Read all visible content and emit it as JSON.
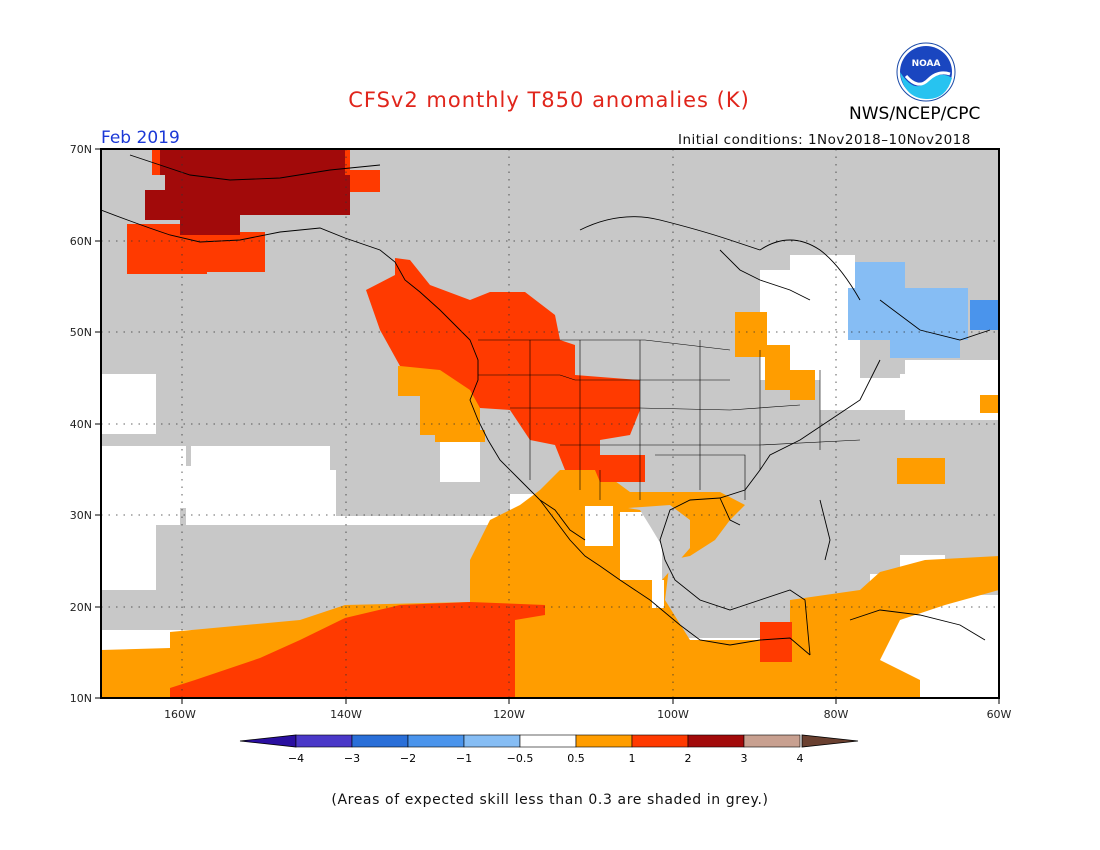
{
  "header": {
    "title": "CFSv2 monthly T850 anomalies (K)",
    "agency": "NWS/NCEP/CPC",
    "logo_text": "NOAA",
    "month": "Feb 2019",
    "initial_conditions": "Initial conditions: 1Nov2018–10Nov2018"
  },
  "map": {
    "lat_labels": [
      "70N",
      "60N",
      "50N",
      "40N",
      "30N",
      "20N",
      "10N"
    ],
    "lon_labels": [
      "160W",
      "140W",
      "120W",
      "100W",
      "80W",
      "60W"
    ],
    "domain": {
      "lon_min": -171,
      "lon_max": -60,
      "lat_min": 10,
      "lat_max": 70
    },
    "skill_mask_color": "#c8c8c8"
  },
  "colorbar": {
    "labels": [
      "−4",
      "−3",
      "−2",
      "−1",
      "−0.5",
      "0.5",
      "1",
      "2",
      "3",
      "4"
    ],
    "colors": [
      "#2a0fa0",
      "#4a38c8",
      "#2a6fd8",
      "#4a94ec",
      "#86bdf4",
      "#ffffff",
      "#ff9d00",
      "#ff3a00",
      "#a20a0a",
      "#c8a090",
      "#6a4030"
    ]
  },
  "footer": {
    "note": "(Areas of expected skill less than 0.3 are shaded in grey.)"
  }
}
